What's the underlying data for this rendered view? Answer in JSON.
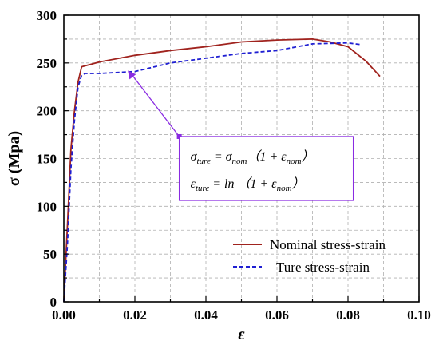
{
  "chart_data": {
    "type": "line",
    "xlabel": "ε",
    "ylabel": "σ (Mpa)",
    "xlim": [
      0.0,
      0.1
    ],
    "ylim": [
      0,
      300
    ],
    "x_ticks": [
      "0.00",
      "0.02",
      "0.04",
      "0.06",
      "0.08",
      "0.10"
    ],
    "y_ticks": [
      "0",
      "50",
      "100",
      "150",
      "200",
      "250",
      "300"
    ],
    "grid": true,
    "legend_position": "bottom-right",
    "series": [
      {
        "name": "Nominal stress-strain",
        "color": "#a0231e",
        "style": "solid",
        "x": [
          0.0,
          0.001,
          0.002,
          0.003,
          0.004,
          0.005,
          0.01,
          0.02,
          0.03,
          0.04,
          0.05,
          0.06,
          0.07,
          0.075,
          0.08,
          0.085,
          0.089
        ],
        "y": [
          0,
          80,
          160,
          200,
          230,
          246,
          251,
          258,
          263,
          267,
          272,
          274,
          275,
          272,
          267,
          252,
          236
        ]
      },
      {
        "name": "Ture stress-strain",
        "color": "#1f1fd2",
        "style": "dashed",
        "x": [
          0.0,
          0.001,
          0.002,
          0.003,
          0.004,
          0.005,
          0.006,
          0.01,
          0.02,
          0.03,
          0.04,
          0.05,
          0.06,
          0.07,
          0.08,
          0.084
        ],
        "y": [
          0,
          60,
          140,
          190,
          225,
          237,
          239,
          239,
          241,
          250,
          255,
          260,
          263,
          270,
          271,
          269
        ]
      }
    ],
    "annotation": {
      "line1": {
        "sym": "σ",
        "sub1": "ture",
        "mid": " = σ",
        "sub2": "nom",
        "tail": "（1 + ε",
        "sub3": "nom",
        "end": "）"
      },
      "line2": {
        "sym": "ε",
        "sub1": "ture",
        "mid": " = ln （1 + ε",
        "sub2": "nom",
        "end": "）"
      },
      "arrow_target": {
        "x": 0.018,
        "y": 242
      },
      "arrow_origin": {
        "x": 0.0325,
        "y": 173
      },
      "color": "#8a2be2"
    }
  }
}
